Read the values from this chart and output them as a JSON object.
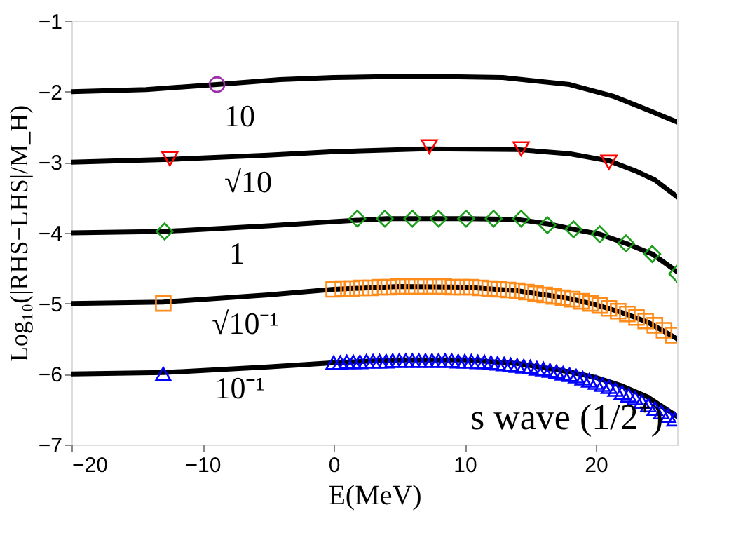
{
  "chart_data": {
    "type": "line",
    "xlabel": "E(MeV)",
    "ylabel": "Log₁₀(|RHS−LHS|/M_H)",
    "xlim": [
      -20,
      26.2
    ],
    "ylim": [
      -7,
      -1
    ],
    "xticks": [
      -20,
      -10,
      0,
      10,
      20
    ],
    "yticks": [
      -7,
      -6,
      -5,
      -4,
      -3,
      -2,
      -1
    ],
    "grid": false,
    "legend": false,
    "series": [
      {
        "color": "#000000",
        "line_style": "solid",
        "marker": "none",
        "x": [
          -20,
          -14.3,
          -8.9,
          -4.1,
          0,
          6.1,
          12.9,
          18,
          21.4,
          24.1,
          26.2
        ],
        "values": [
          -2.0,
          -1.97,
          -1.9,
          -1.83,
          -1.8,
          -1.78,
          -1.8,
          -1.9,
          -2.07,
          -2.27,
          -2.43
        ]
      },
      {
        "color": "#000000",
        "line_style": "solid",
        "marker": "none",
        "x": [
          -20,
          -12.5,
          -5,
          0,
          7,
          14,
          18,
          21,
          23,
          24.5,
          26.2
        ],
        "values": [
          -3.0,
          -2.96,
          -2.9,
          -2.85,
          -2.81,
          -2.82,
          -2.88,
          -2.98,
          -3.12,
          -3.25,
          -3.49
        ]
      },
      {
        "color": "#000000",
        "line_style": "solid",
        "marker": "none",
        "x": [
          -20,
          -12.9,
          -5,
          0,
          4,
          10,
          14,
          16.3,
          18.3,
          20.3,
          22.3,
          24.3,
          26.2
        ],
        "values": [
          -4.0,
          -3.98,
          -3.9,
          -3.84,
          -3.8,
          -3.8,
          -3.81,
          -3.87,
          -3.95,
          -4.02,
          -4.15,
          -4.3,
          -4.55
        ]
      },
      {
        "color": "#000000",
        "line_style": "solid",
        "marker": "none",
        "x": [
          -20,
          -13,
          -5,
          0,
          5,
          10,
          14,
          18,
          20,
          22,
          24,
          26.2
        ],
        "values": [
          -5.0,
          -4.98,
          -4.88,
          -4.8,
          -4.76,
          -4.77,
          -4.82,
          -4.93,
          -5.02,
          -5.13,
          -5.27,
          -5.5
        ]
      },
      {
        "color": "#000000",
        "line_style": "solid",
        "marker": "none",
        "x": [
          -20,
          -13,
          -5,
          0,
          5,
          10,
          14,
          18,
          20,
          22,
          24,
          26.2
        ],
        "values": [
          -6.0,
          -5.98,
          -5.9,
          -5.84,
          -5.8,
          -5.8,
          -5.85,
          -5.97,
          -6.05,
          -6.17,
          -6.33,
          -6.6
        ]
      },
      {
        "type": "scatter",
        "color": "#9b30a8",
        "marker": "circle",
        "x": [
          -8.9
        ],
        "values": [
          -1.9
        ]
      },
      {
        "type": "scatter",
        "color": "#ff0000",
        "marker": "triangle-down",
        "x": [
          -12.5,
          7.3,
          14.3,
          21.0
        ],
        "values": [
          -2.95,
          -2.78,
          -2.81,
          -3.0
        ]
      },
      {
        "type": "scatter",
        "color": "#1a9e1a",
        "marker": "diamond",
        "x": [
          -12.9,
          1.8,
          3.9,
          6.0,
          8.0,
          10.1,
          12.2,
          14.3,
          16.3,
          18.3,
          20.3,
          22.3,
          24.3,
          26.2
        ],
        "values": [
          -3.98,
          -3.8,
          -3.8,
          -3.8,
          -3.8,
          -3.8,
          -3.8,
          -3.8,
          -3.89,
          -3.95,
          -4.02,
          -4.15,
          -4.3,
          -4.58
        ]
      },
      {
        "type": "scatter",
        "color": "#ff8c1a",
        "marker": "square",
        "x": [
          -13,
          0,
          0.7,
          1.4,
          2.1,
          2.8,
          3.5,
          4.2,
          4.9,
          5.6,
          6.3,
          7,
          7.7,
          8.4,
          9.1,
          9.8,
          10.5,
          11.2,
          11.9,
          12.6,
          13.3,
          14,
          14.7,
          15.4,
          16.1,
          16.8,
          17.5,
          18.2,
          18.9,
          19.6,
          20.3,
          21,
          21.7,
          22.4,
          23.1,
          23.8,
          24.5,
          25.2,
          25.9
        ],
        "values": [
          -5.0,
          -4.8,
          -4.79,
          -4.79,
          -4.78,
          -4.78,
          -4.77,
          -4.77,
          -4.76,
          -4.76,
          -4.76,
          -4.76,
          -4.76,
          -4.76,
          -4.77,
          -4.77,
          -4.77,
          -4.78,
          -4.79,
          -4.8,
          -4.81,
          -4.82,
          -4.84,
          -4.86,
          -4.88,
          -4.9,
          -4.92,
          -4.94,
          -4.97,
          -5.0,
          -5.03,
          -5.07,
          -5.11,
          -5.15,
          -5.2,
          -5.25,
          -5.31,
          -5.38,
          -5.45
        ]
      },
      {
        "type": "scatter",
        "color": "#0000ff",
        "marker": "triangle",
        "x": [
          -13,
          0,
          0.5,
          1,
          1.5,
          2,
          2.5,
          3,
          3.5,
          4,
          4.5,
          5,
          5.5,
          6,
          6.5,
          7,
          7.5,
          8,
          8.5,
          9,
          9.5,
          10,
          10.5,
          11,
          11.5,
          12,
          12.5,
          13,
          13.5,
          14,
          14.5,
          15,
          15.5,
          16,
          16.5,
          17,
          17.5,
          18,
          18.5,
          19,
          19.5,
          20,
          20.5,
          21,
          21.5,
          22,
          22.5,
          23,
          23.5,
          24,
          24.5,
          25,
          25.5,
          26
        ],
        "values": [
          -6.0,
          -5.84,
          -5.84,
          -5.83,
          -5.83,
          -5.83,
          -5.82,
          -5.82,
          -5.82,
          -5.82,
          -5.81,
          -5.81,
          -5.81,
          -5.81,
          -5.81,
          -5.81,
          -5.81,
          -5.81,
          -5.81,
          -5.81,
          -5.82,
          -5.82,
          -5.82,
          -5.83,
          -5.83,
          -5.84,
          -5.85,
          -5.86,
          -5.87,
          -5.88,
          -5.89,
          -5.9,
          -5.92,
          -5.93,
          -5.95,
          -5.97,
          -5.99,
          -6.01,
          -6.03,
          -6.06,
          -6.09,
          -6.12,
          -6.15,
          -6.18,
          -6.22,
          -6.26,
          -6.3,
          -6.34,
          -6.39,
          -6.44,
          -6.49,
          -6.54,
          -6.59,
          -6.64
        ]
      }
    ],
    "annotations": [
      "10",
      "√10",
      "1",
      "√10⁻¹",
      "10⁻¹",
      "s wave (1/2⁺)"
    ]
  }
}
